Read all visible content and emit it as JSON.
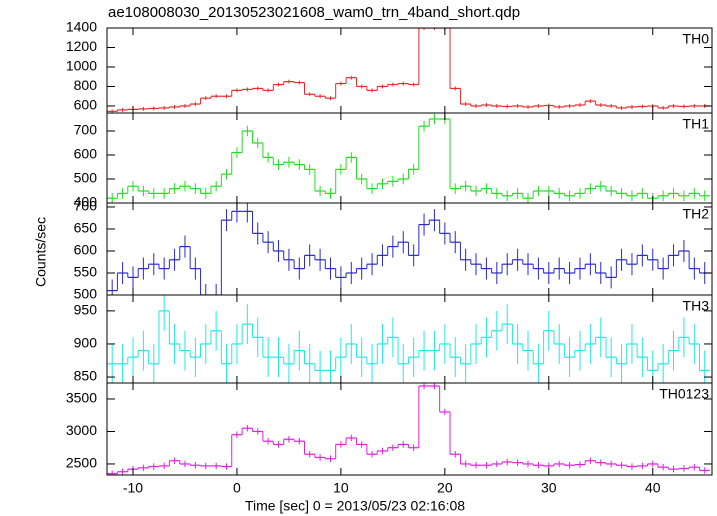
{
  "chart_data": {
    "type": "step",
    "title": "ae108008030_20130523021608_wam0_trn_4band_short.qdp",
    "xlabel": "Time [sec] 0 = 2013/05/23 02:16:08",
    "ylabel": "Counts/sec",
    "xlim": [
      -12.5,
      45.7
    ],
    "xticks": [
      -10,
      0,
      10,
      20,
      30,
      40
    ],
    "x": [
      -12,
      -11,
      -10,
      -9,
      -8,
      -7,
      -6,
      -5,
      -4,
      -3,
      -2,
      -1,
      0,
      1,
      2,
      3,
      4,
      5,
      6,
      7,
      8,
      9,
      10,
      11,
      12,
      13,
      14,
      15,
      16,
      17,
      18,
      19,
      20,
      21,
      22,
      23,
      24,
      25,
      26,
      27,
      28,
      29,
      30,
      31,
      32,
      33,
      34,
      35,
      36,
      37,
      38,
      39,
      40,
      41,
      42,
      43,
      44,
      45
    ],
    "panels": [
      {
        "name": "TH0",
        "color": "#e82a2a",
        "ylim": [
          528,
          1400
        ],
        "yticks": [
          600,
          800,
          1000,
          1200,
          1400
        ],
        "error": 20,
        "values": [
          545,
          560,
          565,
          570,
          575,
          580,
          590,
          600,
          620,
          680,
          700,
          700,
          760,
          770,
          780,
          760,
          820,
          850,
          840,
          720,
          700,
          680,
          830,
          890,
          800,
          760,
          800,
          820,
          830,
          820,
          1400,
          1400,
          1400,
          780,
          620,
          600,
          610,
          600,
          595,
          600,
          590,
          600,
          605,
          590,
          600,
          610,
          650,
          610,
          600,
          580,
          590,
          595,
          600,
          580,
          600,
          595,
          600,
          600
        ]
      },
      {
        "name": "TH1",
        "color": "#22dd22",
        "ylim": [
          400,
          775
        ],
        "yticks": [
          400,
          500,
          600,
          700
        ],
        "error": 22,
        "values": [
          420,
          440,
          470,
          450,
          440,
          440,
          460,
          470,
          460,
          440,
          470,
          520,
          610,
          700,
          650,
          590,
          560,
          570,
          560,
          540,
          450,
          440,
          540,
          590,
          500,
          460,
          480,
          490,
          500,
          540,
          720,
          750,
          750,
          460,
          470,
          450,
          460,
          440,
          430,
          440,
          420,
          450,
          450,
          440,
          430,
          440,
          460,
          470,
          450,
          440,
          430,
          440,
          420,
          430,
          440,
          430,
          440,
          430
        ]
      },
      {
        "name": "TH2",
        "color": "#2a2ac8",
        "ylim": [
          500,
          709
        ],
        "yticks": [
          500,
          550,
          600,
          650,
          700
        ],
        "error": 25,
        "values": [
          510,
          550,
          540,
          560,
          570,
          560,
          580,
          610,
          560,
          500,
          500,
          670,
          690,
          690,
          640,
          620,
          600,
          580,
          560,
          590,
          580,
          560,
          540,
          550,
          560,
          570,
          590,
          610,
          620,
          590,
          660,
          670,
          640,
          620,
          580,
          570,
          560,
          550,
          570,
          580,
          570,
          560,
          550,
          560,
          550,
          560,
          570,
          550,
          540,
          580,
          570,
          590,
          580,
          560,
          590,
          600,
          560,
          550
        ]
      },
      {
        "name": "TH3",
        "color": "#22e8e8",
        "ylim": [
          841,
          974
        ],
        "yticks": [
          850,
          900,
          950
        ],
        "error": 30,
        "values": [
          870,
          870,
          880,
          890,
          870,
          950,
          900,
          890,
          880,
          900,
          920,
          870,
          900,
          930,
          910,
          880,
          880,
          870,
          890,
          870,
          860,
          860,
          880,
          900,
          880,
          870,
          900,
          910,
          870,
          880,
          890,
          890,
          900,
          880,
          870,
          900,
          910,
          920,
          930,
          900,
          890,
          870,
          920,
          900,
          880,
          890,
          900,
          910,
          880,
          870,
          900,
          880,
          860,
          870,
          890,
          910,
          900,
          860
        ]
      },
      {
        "name": "TH0123",
        "color": "#e020e0",
        "ylim": [
          2330,
          3746
        ],
        "yticks": [
          2500,
          3000,
          3500
        ],
        "error": 50,
        "values": [
          2350,
          2380,
          2420,
          2440,
          2460,
          2470,
          2550,
          2500,
          2480,
          2470,
          2470,
          2460,
          2950,
          3050,
          3000,
          2850,
          2800,
          2880,
          2850,
          2650,
          2600,
          2580,
          2800,
          2900,
          2800,
          2650,
          2700,
          2750,
          2800,
          2750,
          3700,
          3700,
          3300,
          2650,
          2500,
          2480,
          2480,
          2500,
          2530,
          2520,
          2500,
          2480,
          2470,
          2500,
          2480,
          2490,
          2550,
          2520,
          2500,
          2480,
          2460,
          2470,
          2500,
          2450,
          2420,
          2430,
          2450,
          2400
        ]
      }
    ]
  }
}
